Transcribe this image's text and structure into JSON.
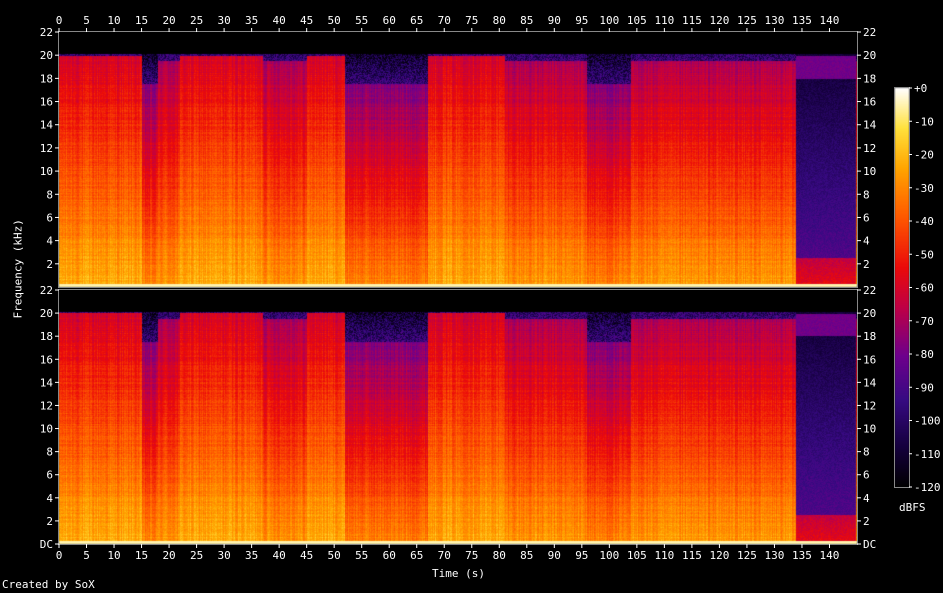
{
  "chart_data": {
    "type": "heatmap",
    "description": "spectrogram",
    "channels": 2,
    "title": "",
    "xlabel": "Time (s)",
    "ylabel": "Frequency (kHz)",
    "xlim": [
      0,
      145
    ],
    "ylim": [
      0,
      22
    ],
    "x_ticks": [
      "0",
      "5",
      "10",
      "15",
      "20",
      "25",
      "30",
      "35",
      "40",
      "45",
      "50",
      "55",
      "60",
      "65",
      "70",
      "75",
      "80",
      "85",
      "90",
      "95",
      "100",
      "105",
      "110",
      "115",
      "120",
      "125",
      "130",
      "135",
      "140"
    ],
    "y_ticks_top": [
      "2",
      "4",
      "6",
      "8",
      "10",
      "12",
      "14",
      "16",
      "18",
      "20",
      "22"
    ],
    "y_ticks_bottom": [
      "DC",
      "2",
      "4",
      "6",
      "8",
      "10",
      "12",
      "14",
      "16",
      "18",
      "20",
      "22"
    ],
    "colorbar": {
      "label": "dBFS",
      "range": [
        -120,
        0
      ],
      "ticks": [
        "+0",
        "-10",
        "-20",
        "-30",
        "-40",
        "-50",
        "-60",
        "-70",
        "-80",
        "-90",
        "-100",
        "-110",
        "-120"
      ]
    },
    "segments": [
      {
        "t0": 0,
        "t1": 15,
        "level": "loud"
      },
      {
        "t0": 15,
        "t1": 18,
        "level": "quiet"
      },
      {
        "t0": 18,
        "t1": 22,
        "level": "medium"
      },
      {
        "t0": 22,
        "t1": 37,
        "level": "loud"
      },
      {
        "t0": 37,
        "t1": 45,
        "level": "medium"
      },
      {
        "t0": 45,
        "t1": 52,
        "level": "loud"
      },
      {
        "t0": 52,
        "t1": 67,
        "level": "quiet"
      },
      {
        "t0": 67,
        "t1": 81,
        "level": "loud"
      },
      {
        "t0": 81,
        "t1": 96,
        "level": "medium"
      },
      {
        "t0": 96,
        "t1": 104,
        "level": "quiet"
      },
      {
        "t0": 104,
        "t1": 134,
        "level": "medium"
      },
      {
        "t0": 134,
        "t1": 145,
        "level": "silent"
      }
    ]
  },
  "footer": {
    "credit": "Created by SoX"
  }
}
